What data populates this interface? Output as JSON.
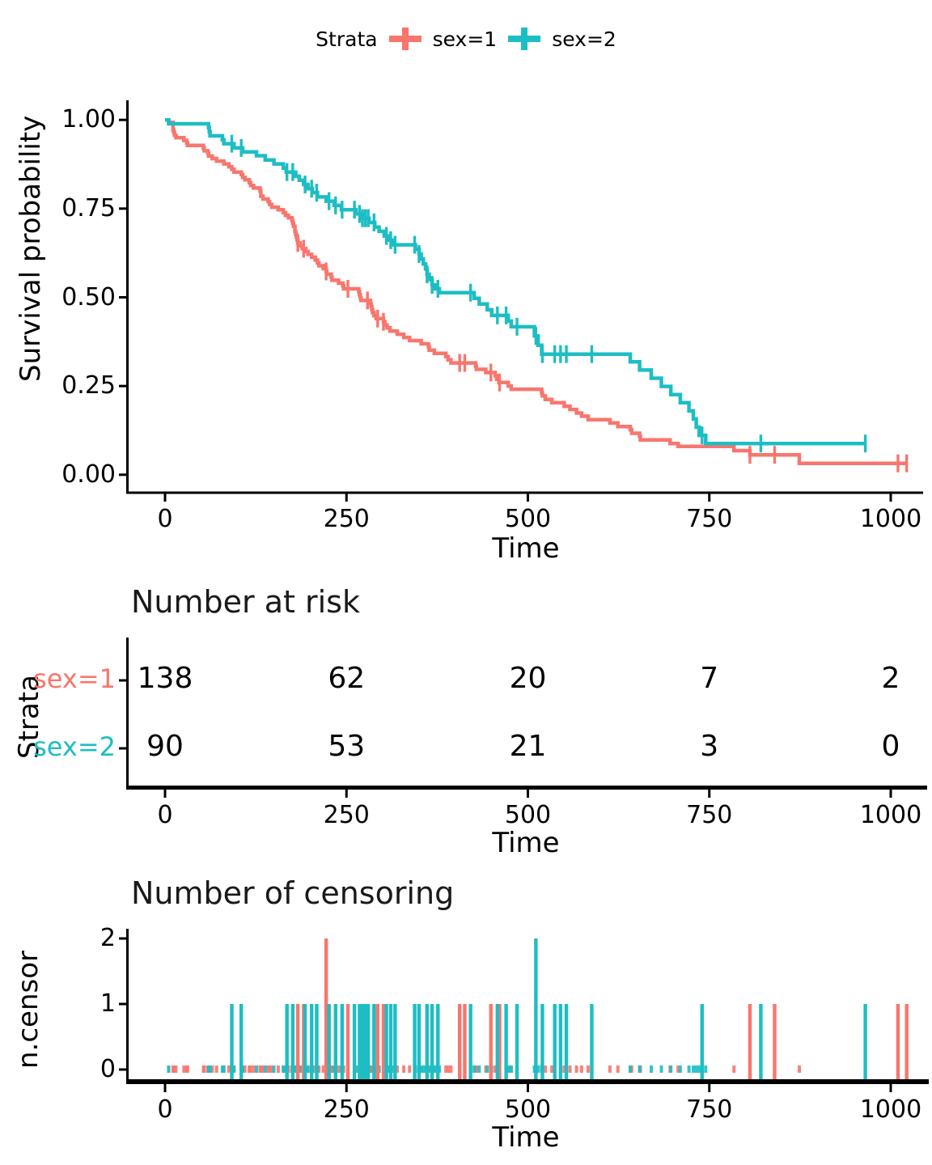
{
  "figure": {
    "background": "#ffffff",
    "axis_color": "#000000"
  },
  "legend": {
    "title": "Strata",
    "entries": [
      {
        "label": "sex=1",
        "color": "#F8766D"
      },
      {
        "label": "sex=2",
        "color": "#1CBEC4"
      }
    ]
  },
  "chart_data": [
    {
      "type": "line",
      "subtype": "kaplan-meier-step",
      "title": "",
      "xlabel": "Time",
      "ylabel": "Survival probability",
      "xlim": [
        0,
        1022
      ],
      "ylim": [
        0.0,
        1.0
      ],
      "xticks": [
        0,
        250,
        500,
        750,
        1000
      ],
      "yticks": [
        "1.00",
        "0.75",
        "0.50",
        "0.25",
        "0.00"
      ],
      "ytick_values": [
        1.0,
        0.75,
        0.5,
        0.25,
        0.0
      ],
      "grid": "off",
      "legend_position": "top",
      "series": [
        {
          "name": "sex=1",
          "color": "#F8766D",
          "end_time": 1022,
          "steps": [
            [
              0,
              1.0
            ],
            [
              5,
              0.993
            ],
            [
              11,
              0.971
            ],
            [
              12,
              0.964
            ],
            [
              13,
              0.957
            ],
            [
              15,
              0.95
            ],
            [
              26,
              0.942
            ],
            [
              30,
              0.935
            ],
            [
              31,
              0.928
            ],
            [
              53,
              0.92
            ],
            [
              54,
              0.913
            ],
            [
              59,
              0.906
            ],
            [
              60,
              0.898
            ],
            [
              65,
              0.891
            ],
            [
              71,
              0.884
            ],
            [
              81,
              0.876
            ],
            [
              88,
              0.868
            ],
            [
              92,
              0.861
            ],
            [
              95,
              0.853
            ],
            [
              105,
              0.846
            ],
            [
              107,
              0.838
            ],
            [
              110,
              0.831
            ],
            [
              116,
              0.823
            ],
            [
              118,
              0.815
            ],
            [
              122,
              0.808
            ],
            [
              131,
              0.8
            ],
            [
              132,
              0.785
            ],
            [
              135,
              0.777
            ],
            [
              142,
              0.77
            ],
            [
              144,
              0.762
            ],
            [
              147,
              0.754
            ],
            [
              156,
              0.747
            ],
            [
              163,
              0.739
            ],
            [
              166,
              0.731
            ],
            [
              170,
              0.724
            ],
            [
              175,
              0.716
            ],
            [
              176,
              0.708
            ],
            [
              177,
              0.7
            ],
            [
              179,
              0.685
            ],
            [
              180,
              0.677
            ],
            [
              181,
              0.669
            ],
            [
              182,
              0.661
            ],
            [
              183,
              0.653
            ],
            [
              186,
              0.645
            ],
            [
              189,
              0.637
            ],
            [
              194,
              0.629
            ],
            [
              197,
              0.621
            ],
            [
              202,
              0.613
            ],
            [
              207,
              0.605
            ],
            [
              210,
              0.597
            ],
            [
              212,
              0.589
            ],
            [
              218,
              0.581
            ],
            [
              222,
              0.573
            ],
            [
              223,
              0.565
            ],
            [
              229,
              0.557
            ],
            [
              230,
              0.548
            ],
            [
              239,
              0.54
            ],
            [
              245,
              0.532
            ],
            [
              246,
              0.524
            ],
            [
              267,
              0.516
            ],
            [
              268,
              0.507
            ],
            [
              269,
              0.499
            ],
            [
              270,
              0.491
            ],
            [
              283,
              0.482
            ],
            [
              284,
              0.474
            ],
            [
              285,
              0.465
            ],
            [
              286,
              0.457
            ],
            [
              288,
              0.448
            ],
            [
              291,
              0.44
            ],
            [
              301,
              0.431
            ],
            [
              303,
              0.422
            ],
            [
              306,
              0.414
            ],
            [
              310,
              0.405
            ],
            [
              320,
              0.396
            ],
            [
              329,
              0.387
            ],
            [
              337,
              0.378
            ],
            [
              353,
              0.369
            ],
            [
              363,
              0.36
            ],
            [
              364,
              0.351
            ],
            [
              371,
              0.342
            ],
            [
              387,
              0.333
            ],
            [
              390,
              0.324
            ],
            [
              394,
              0.315
            ],
            [
              428,
              0.306
            ],
            [
              429,
              0.297
            ],
            [
              442,
              0.288
            ],
            [
              455,
              0.279
            ],
            [
              457,
              0.269
            ],
            [
              460,
              0.26
            ],
            [
              473,
              0.25
            ],
            [
              477,
              0.241
            ],
            [
              519,
              0.231
            ],
            [
              520,
              0.222
            ],
            [
              524,
              0.212
            ],
            [
              533,
              0.203
            ],
            [
              550,
              0.193
            ],
            [
              558,
              0.184
            ],
            [
              567,
              0.174
            ],
            [
              574,
              0.165
            ],
            [
              583,
              0.155
            ],
            [
              613,
              0.146
            ],
            [
              624,
              0.136
            ],
            [
              641,
              0.127
            ],
            [
              643,
              0.117
            ],
            [
              654,
              0.108
            ],
            [
              655,
              0.098
            ],
            [
              696,
              0.088
            ],
            [
              707,
              0.08
            ],
            [
              784,
              0.068
            ],
            [
              806,
              0.056
            ],
            [
              874,
              0.032
            ]
          ],
          "censor_marks": [
            [
              183,
              1
            ],
            [
              191,
              1
            ],
            [
              222,
              2
            ],
            [
              252,
              1
            ],
            [
              279,
              1
            ],
            [
              293,
              1
            ],
            [
              301,
              1
            ],
            [
              406,
              1
            ],
            [
              413,
              1
            ],
            [
              449,
              1
            ],
            [
              461,
              1
            ],
            [
              806,
              1
            ],
            [
              840,
              1
            ],
            [
              1010,
              1
            ],
            [
              1022,
              1
            ]
          ]
        },
        {
          "name": "sex=2",
          "color": "#1CBEC4",
          "end_time": 965,
          "steps": [
            [
              0,
              1.0
            ],
            [
              5,
              0.989
            ],
            [
              60,
              0.978
            ],
            [
              61,
              0.967
            ],
            [
              62,
              0.955
            ],
            [
              79,
              0.944
            ],
            [
              81,
              0.933
            ],
            [
              95,
              0.921
            ],
            [
              107,
              0.91
            ],
            [
              126,
              0.899
            ],
            [
              138,
              0.887
            ],
            [
              150,
              0.876
            ],
            [
              163,
              0.864
            ],
            [
              167,
              0.853
            ],
            [
              180,
              0.841
            ],
            [
              185,
              0.83
            ],
            [
              191,
              0.818
            ],
            [
              197,
              0.806
            ],
            [
              203,
              0.795
            ],
            [
              210,
              0.783
            ],
            [
              222,
              0.771
            ],
            [
              233,
              0.759
            ],
            [
              243,
              0.747
            ],
            [
              263,
              0.735
            ],
            [
              272,
              0.723
            ],
            [
              281,
              0.711
            ],
            [
              289,
              0.698
            ],
            [
              295,
              0.686
            ],
            [
              302,
              0.673
            ],
            [
              308,
              0.661
            ],
            [
              315,
              0.648
            ],
            [
              345,
              0.635
            ],
            [
              350,
              0.622
            ],
            [
              353,
              0.608
            ],
            [
              356,
              0.594
            ],
            [
              359,
              0.58
            ],
            [
              361,
              0.565
            ],
            [
              364,
              0.55
            ],
            [
              368,
              0.535
            ],
            [
              372,
              0.524
            ],
            [
              378,
              0.513
            ],
            [
              426,
              0.497
            ],
            [
              433,
              0.481
            ],
            [
              444,
              0.465
            ],
            [
              450,
              0.449
            ],
            [
              473,
              0.433
            ],
            [
              477,
              0.417
            ],
            [
              509,
              0.391
            ],
            [
              514,
              0.365
            ],
            [
              519,
              0.34
            ],
            [
              641,
              0.318
            ],
            [
              654,
              0.295
            ],
            [
              670,
              0.272
            ],
            [
              684,
              0.249
            ],
            [
              697,
              0.226
            ],
            [
              710,
              0.203
            ],
            [
              722,
              0.18
            ],
            [
              728,
              0.157
            ],
            [
              732,
              0.134
            ],
            [
              736,
              0.111
            ],
            [
              745,
              0.088
            ]
          ],
          "censor_marks": [
            [
              92,
              1
            ],
            [
              105,
              1
            ],
            [
              168,
              1
            ],
            [
              176,
              1
            ],
            [
              193,
              1
            ],
            [
              202,
              1
            ],
            [
              209,
              1
            ],
            [
              226,
              1
            ],
            [
              235,
              1
            ],
            [
              244,
              1
            ],
            [
              261,
              1
            ],
            [
              268,
              1
            ],
            [
              272,
              1
            ],
            [
              276,
              1
            ],
            [
              280,
              1
            ],
            [
              288,
              1
            ],
            [
              305,
              1
            ],
            [
              311,
              1
            ],
            [
              317,
              1
            ],
            [
              344,
              1
            ],
            [
              350,
              1
            ],
            [
              361,
              1
            ],
            [
              368,
              1
            ],
            [
              376,
              1
            ],
            [
              421,
              1
            ],
            [
              458,
              1
            ],
            [
              470,
              1
            ],
            [
              485,
              1
            ],
            [
              511,
              2
            ],
            [
              520,
              1
            ],
            [
              537,
              1
            ],
            [
              545,
              1
            ],
            [
              553,
              1
            ],
            [
              588,
              1
            ],
            [
              740,
              1
            ],
            [
              821,
              1
            ],
            [
              965,
              1
            ]
          ]
        }
      ]
    },
    {
      "type": "table",
      "title": "Number at risk",
      "xlabel": "Time",
      "ylabel": "Strata",
      "times": [
        0,
        250,
        500,
        750,
        1000
      ],
      "rows": [
        {
          "label": "sex=1",
          "color": "#F8766D",
          "values": [
            138,
            62,
            20,
            7,
            2
          ]
        },
        {
          "label": "sex=2",
          "color": "#1CBEC4",
          "values": [
            90,
            53,
            21,
            3,
            0
          ]
        }
      ]
    },
    {
      "type": "bar",
      "subtype": "censoring-spikes",
      "title": "Number of censoring",
      "xlabel": "Time",
      "ylabel": "n.censor",
      "xticks": [
        0,
        250,
        500,
        750,
        1000
      ],
      "yticks": [
        0,
        1,
        2
      ],
      "ylim": [
        0,
        2
      ],
      "series_note": "bar heights come from chart_data[0].series[*].censor_marks; zero-height rug marks occur at event (step) times"
    }
  ]
}
